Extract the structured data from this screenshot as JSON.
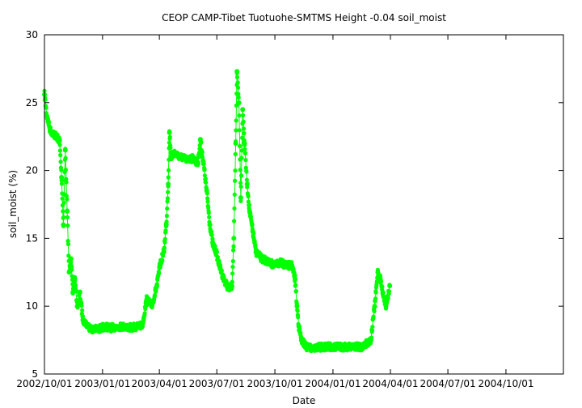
{
  "chart_data": {
    "type": "scatter",
    "title": "CEOP CAMP-Tibet Tuotuohe-SMTMS Height -0.04 soil_moist",
    "xlabel": "Date",
    "ylabel": "soil_moist (%)",
    "xlim": [
      "2002-10-01",
      "2004-12-31"
    ],
    "ylim": [
      5,
      30
    ],
    "x_ticks": [
      "2002/10/01",
      "2003/01/01",
      "2003/04/01",
      "2003/07/01",
      "2003/10/01",
      "2004/01/01",
      "2004/04/01",
      "2004/07/01",
      "2004/10/01"
    ],
    "y_ticks": [
      5,
      10,
      15,
      20,
      25,
      30
    ],
    "grid": false,
    "series": [
      {
        "color": "#00ff00",
        "points": [
          [
            "2002-10-01",
            25.6
          ],
          [
            "2002-10-05",
            24.0
          ],
          [
            "2002-10-10",
            23.0
          ],
          [
            "2002-10-15",
            22.7
          ],
          [
            "2002-10-20",
            22.5
          ],
          [
            "2002-10-25",
            22.2
          ],
          [
            "2002-10-28",
            19.5
          ],
          [
            "2002-10-31",
            16.0
          ],
          [
            "2002-11-03",
            21.5
          ],
          [
            "2002-11-06",
            17.0
          ],
          [
            "2002-11-09",
            12.5
          ],
          [
            "2002-11-12",
            13.5
          ],
          [
            "2002-11-15",
            11.0
          ],
          [
            "2002-11-18",
            12.0
          ],
          [
            "2002-11-22",
            10.0
          ],
          [
            "2002-11-26",
            11.0
          ],
          [
            "2002-12-01",
            9.0
          ],
          [
            "2002-12-08",
            8.6
          ],
          [
            "2002-12-15",
            8.3
          ],
          [
            "2002-12-25",
            8.3
          ],
          [
            "2003-01-05",
            8.5
          ],
          [
            "2003-01-15",
            8.4
          ],
          [
            "2003-01-25",
            8.5
          ],
          [
            "2003-02-05",
            8.5
          ],
          [
            "2003-02-15",
            8.4
          ],
          [
            "2003-02-25",
            8.5
          ],
          [
            "2003-03-05",
            8.6
          ],
          [
            "2003-03-12",
            10.5
          ],
          [
            "2003-03-20",
            10.0
          ],
          [
            "2003-03-28",
            11.5
          ],
          [
            "2003-04-02",
            13.0
          ],
          [
            "2003-04-08",
            14.0
          ],
          [
            "2003-04-12",
            16.0
          ],
          [
            "2003-04-15",
            19.0
          ],
          [
            "2003-04-17",
            22.8
          ],
          [
            "2003-04-20",
            21.0
          ],
          [
            "2003-04-25",
            21.3
          ],
          [
            "2003-05-05",
            21.0
          ],
          [
            "2003-05-15",
            20.8
          ],
          [
            "2003-05-25",
            20.9
          ],
          [
            "2003-06-01",
            20.5
          ],
          [
            "2003-06-05",
            22.3
          ],
          [
            "2003-06-10",
            20.5
          ],
          [
            "2003-06-15",
            18.5
          ],
          [
            "2003-06-20",
            16.0
          ],
          [
            "2003-06-25",
            14.5
          ],
          [
            "2003-06-30",
            14.0
          ],
          [
            "2003-07-05",
            13.0
          ],
          [
            "2003-07-12",
            12.0
          ],
          [
            "2003-07-20",
            11.3
          ],
          [
            "2003-07-25",
            11.5
          ],
          [
            "2003-07-28",
            15.0
          ],
          [
            "2003-07-31",
            22.0
          ],
          [
            "2003-08-02",
            27.3
          ],
          [
            "2003-08-05",
            25.0
          ],
          [
            "2003-08-08",
            18.0
          ],
          [
            "2003-08-11",
            24.5
          ],
          [
            "2003-08-14",
            22.0
          ],
          [
            "2003-08-18",
            19.0
          ],
          [
            "2003-08-22",
            17.0
          ],
          [
            "2003-08-27",
            15.5
          ],
          [
            "2003-09-01",
            14.0
          ],
          [
            "2003-09-10",
            13.5
          ],
          [
            "2003-09-20",
            13.3
          ],
          [
            "2003-09-30",
            13.0
          ],
          [
            "2003-10-10",
            13.2
          ],
          [
            "2003-10-20",
            13.0
          ],
          [
            "2003-10-28",
            13.0
          ],
          [
            "2003-11-02",
            12.0
          ],
          [
            "2003-11-05",
            10.0
          ],
          [
            "2003-11-08",
            8.5
          ],
          [
            "2003-11-12",
            7.5
          ],
          [
            "2003-11-20",
            7.0
          ],
          [
            "2003-12-01",
            6.9
          ],
          [
            "2003-12-15",
            7.0
          ],
          [
            "2004-01-01",
            7.0
          ],
          [
            "2004-01-15",
            7.0
          ],
          [
            "2004-02-01",
            7.0
          ],
          [
            "2004-02-15",
            7.0
          ],
          [
            "2004-03-01",
            7.5
          ],
          [
            "2004-03-07",
            10.0
          ],
          [
            "2004-03-12",
            12.5
          ],
          [
            "2004-03-16",
            12.0
          ],
          [
            "2004-03-20",
            11.0
          ],
          [
            "2004-03-25",
            10.0
          ],
          [
            "2004-03-31",
            11.5
          ]
        ]
      }
    ]
  }
}
